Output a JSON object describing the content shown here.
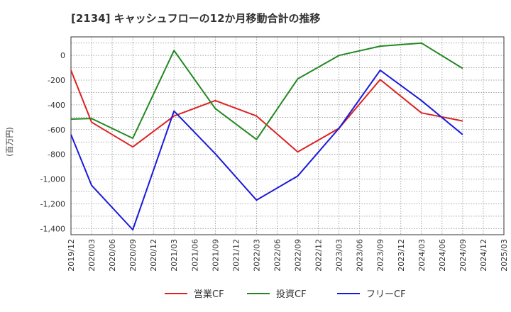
{
  "chart_data": {
    "type": "line",
    "title": "[2134]  キャッシュフローの12か月移動合計の推移",
    "ylabel": "(百万円)",
    "xlabel": "",
    "ylim": [
      -1450,
      150
    ],
    "yticks": [
      0,
      -200,
      -400,
      -600,
      -800,
      -1000,
      -1200,
      -1400
    ],
    "ytick_labels": [
      "0",
      "-200",
      "-400",
      "-600",
      "-800",
      "-1,000",
      "-1,200",
      "-1,400"
    ],
    "categories": [
      "2019/12",
      "2020/03",
      "2020/06",
      "2020/09",
      "2020/12",
      "2021/03",
      "2021/06",
      "2021/09",
      "2021/12",
      "2022/03",
      "2022/06",
      "2022/09",
      "2022/12",
      "2023/03",
      "2023/06",
      "2023/09",
      "2023/12",
      "2024/03",
      "2024/06",
      "2024/09",
      "2024/12",
      "2025/03"
    ],
    "grid": true,
    "legend_position": "bottom",
    "series": [
      {
        "name": "営業CF",
        "color": "#dd2222",
        "values": [
          -120,
          -540,
          null,
          -740,
          null,
          -490,
          null,
          -365,
          null,
          -490,
          null,
          -780,
          null,
          -590,
          null,
          -195,
          null,
          -465,
          null,
          -530,
          null,
          null
        ]
      },
      {
        "name": "投資CF",
        "color": "#228822",
        "values": [
          -515,
          -510,
          null,
          -670,
          null,
          40,
          null,
          -430,
          null,
          -680,
          null,
          -190,
          null,
          0,
          null,
          75,
          null,
          100,
          null,
          -105,
          null,
          null
        ]
      },
      {
        "name": "フリーCF",
        "color": "#1a1adc",
        "values": [
          -640,
          -1050,
          null,
          -1410,
          null,
          -450,
          null,
          -795,
          null,
          -1170,
          null,
          -975,
          null,
          -590,
          null,
          -120,
          null,
          -365,
          null,
          -640,
          null,
          null
        ]
      }
    ]
  }
}
